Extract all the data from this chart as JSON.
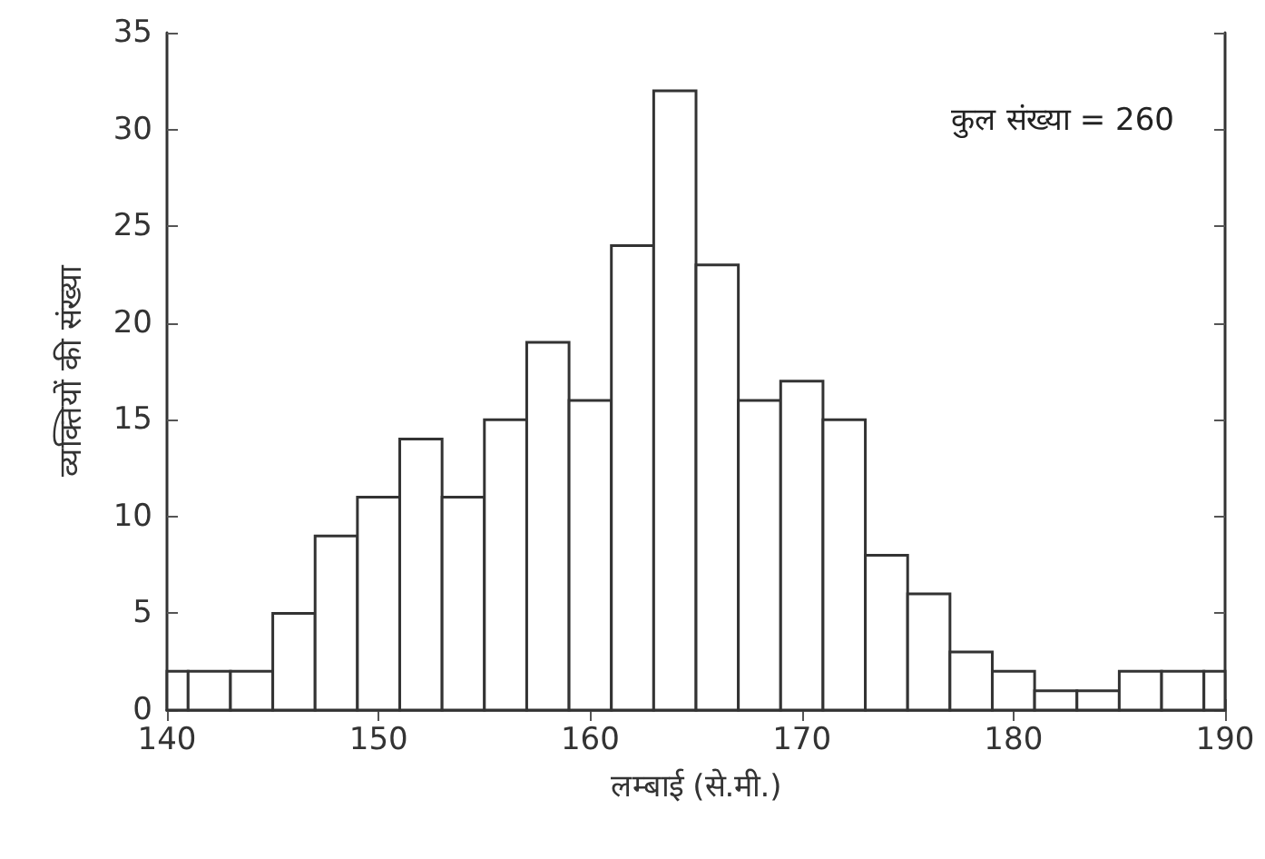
{
  "chart_data": {
    "type": "histogram",
    "xlabel": "लम्बाई (से.मी.)",
    "ylabel": "व्यक्तियों की संख्या",
    "bins": [
      140,
      141,
      143,
      145,
      147,
      149,
      151,
      153,
      155,
      157,
      159,
      161,
      163,
      165,
      167,
      169,
      171,
      173,
      175,
      177,
      179,
      181,
      183,
      185,
      187,
      189,
      190
    ],
    "values": [
      2,
      2,
      2,
      5,
      9,
      11,
      14,
      11,
      15,
      19,
      16,
      24,
      32,
      23,
      16,
      17,
      15,
      8,
      6,
      3,
      2,
      1,
      1,
      2,
      2,
      2
    ],
    "color": "#ffffff",
    "xlim": [
      140,
      190
    ],
    "xticks": [
      140,
      150,
      160,
      170,
      180,
      190
    ],
    "ylim": [
      0,
      35
    ],
    "yticks": [
      0,
      5,
      10,
      15,
      20,
      25,
      30,
      35
    ],
    "grid": false,
    "annotations": [
      "कुल संख्या = 260"
    ]
  }
}
